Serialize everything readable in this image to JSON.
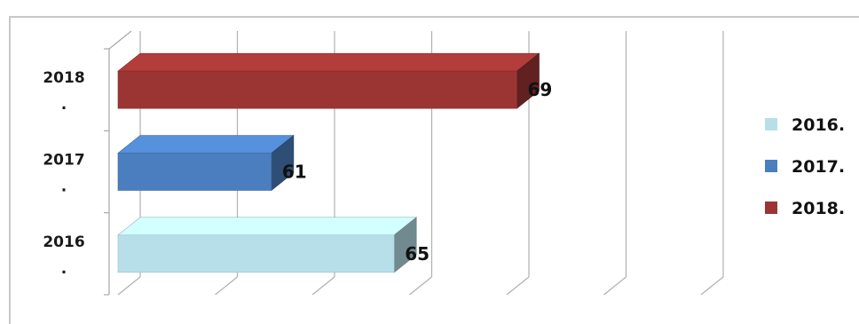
{
  "chart_data": {
    "type": "bar",
    "orientation": "horizontal",
    "style": "3d",
    "categories": [
      "2016.",
      "2017.",
      "2018."
    ],
    "series": [
      {
        "name": "2016.",
        "color": "#b7dfe9",
        "values": [
          65,
          null,
          null
        ]
      },
      {
        "name": "2017.",
        "color": "#4a7ebf",
        "values": [
          null,
          61,
          null
        ]
      },
      {
        "name": "2018.",
        "color": "#9b3533",
        "values": [
          null,
          null,
          69
        ]
      }
    ],
    "values": [
      65,
      61,
      69
    ],
    "data_labels": [
      "65",
      "61",
      "69"
    ],
    "xlim": [
      56,
      75
    ],
    "title": "",
    "xlabel": "",
    "ylabel": "",
    "grid": true,
    "legend": {
      "position": "right",
      "entries": [
        "2016.",
        "2017.",
        "2018."
      ]
    }
  }
}
